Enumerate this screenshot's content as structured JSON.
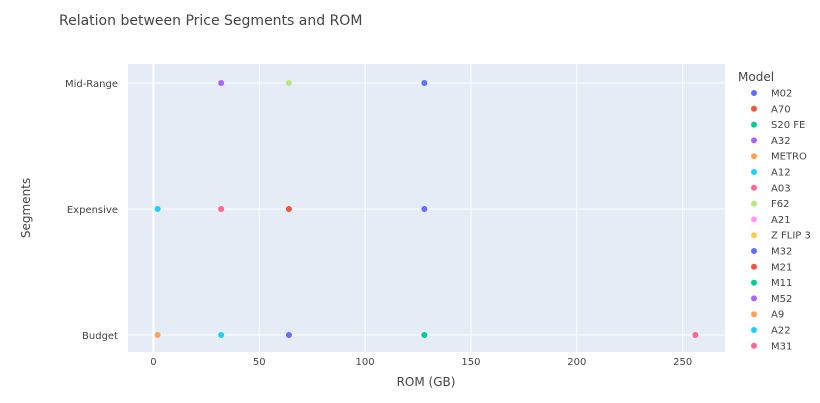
{
  "chart_data": {
    "type": "scatter",
    "title": "Relation between Price Segments and ROM",
    "xlabel": "ROM (GB)",
    "ylabel": "Segments",
    "xlim": [
      -12,
      270
    ],
    "x_ticks": [
      0,
      50,
      100,
      150,
      200,
      250
    ],
    "categories": [
      "Budget",
      "Expensive",
      "Mid-Range"
    ],
    "legend_title": "Model",
    "legend_position": "right",
    "grid": true,
    "series": [
      {
        "name": "M02",
        "color": "#636efa",
        "points": [
          {
            "x": 128,
            "y": "Mid-Range"
          }
        ]
      },
      {
        "name": "A70",
        "color": "#EF553B",
        "points": []
      },
      {
        "name": "S20 FE",
        "color": "#00cc96",
        "points": []
      },
      {
        "name": "A32",
        "color": "#ab63fa",
        "points": [
          {
            "x": 32,
            "y": "Mid-Range"
          }
        ]
      },
      {
        "name": "METRO",
        "color": "#FFA15A",
        "points": [
          {
            "x": 2,
            "y": "Budget"
          }
        ]
      },
      {
        "name": "A12",
        "color": "#19d3f3",
        "points": [
          {
            "x": 2,
            "y": "Expensive"
          }
        ]
      },
      {
        "name": "A03",
        "color": "#FF6692",
        "points": [
          {
            "x": 32,
            "y": "Expensive"
          }
        ]
      },
      {
        "name": "F62",
        "color": "#B6E880",
        "points": [
          {
            "x": 64,
            "y": "Mid-Range"
          }
        ]
      },
      {
        "name": "A21",
        "color": "#FF97FF",
        "points": []
      },
      {
        "name": "Z FLIP 3",
        "color": "#FECB52",
        "points": []
      },
      {
        "name": "M32",
        "color": "#636efa",
        "points": [
          {
            "x": 128,
            "y": "Expensive"
          },
          {
            "x": 64,
            "y": "Budget"
          }
        ]
      },
      {
        "name": "M21",
        "color": "#EF553B",
        "points": [
          {
            "x": 64,
            "y": "Expensive"
          }
        ]
      },
      {
        "name": "M11",
        "color": "#00cc96",
        "points": [
          {
            "x": 128,
            "y": "Budget"
          }
        ]
      },
      {
        "name": "M52",
        "color": "#ab63fa",
        "points": []
      },
      {
        "name": "A9",
        "color": "#FFA15A",
        "points": []
      },
      {
        "name": "A22",
        "color": "#19d3f3",
        "points": [
          {
            "x": 32,
            "y": "Budget"
          }
        ]
      },
      {
        "name": "M31",
        "color": "#FF6692",
        "points": [
          {
            "x": 256,
            "y": "Budget"
          }
        ]
      }
    ]
  }
}
